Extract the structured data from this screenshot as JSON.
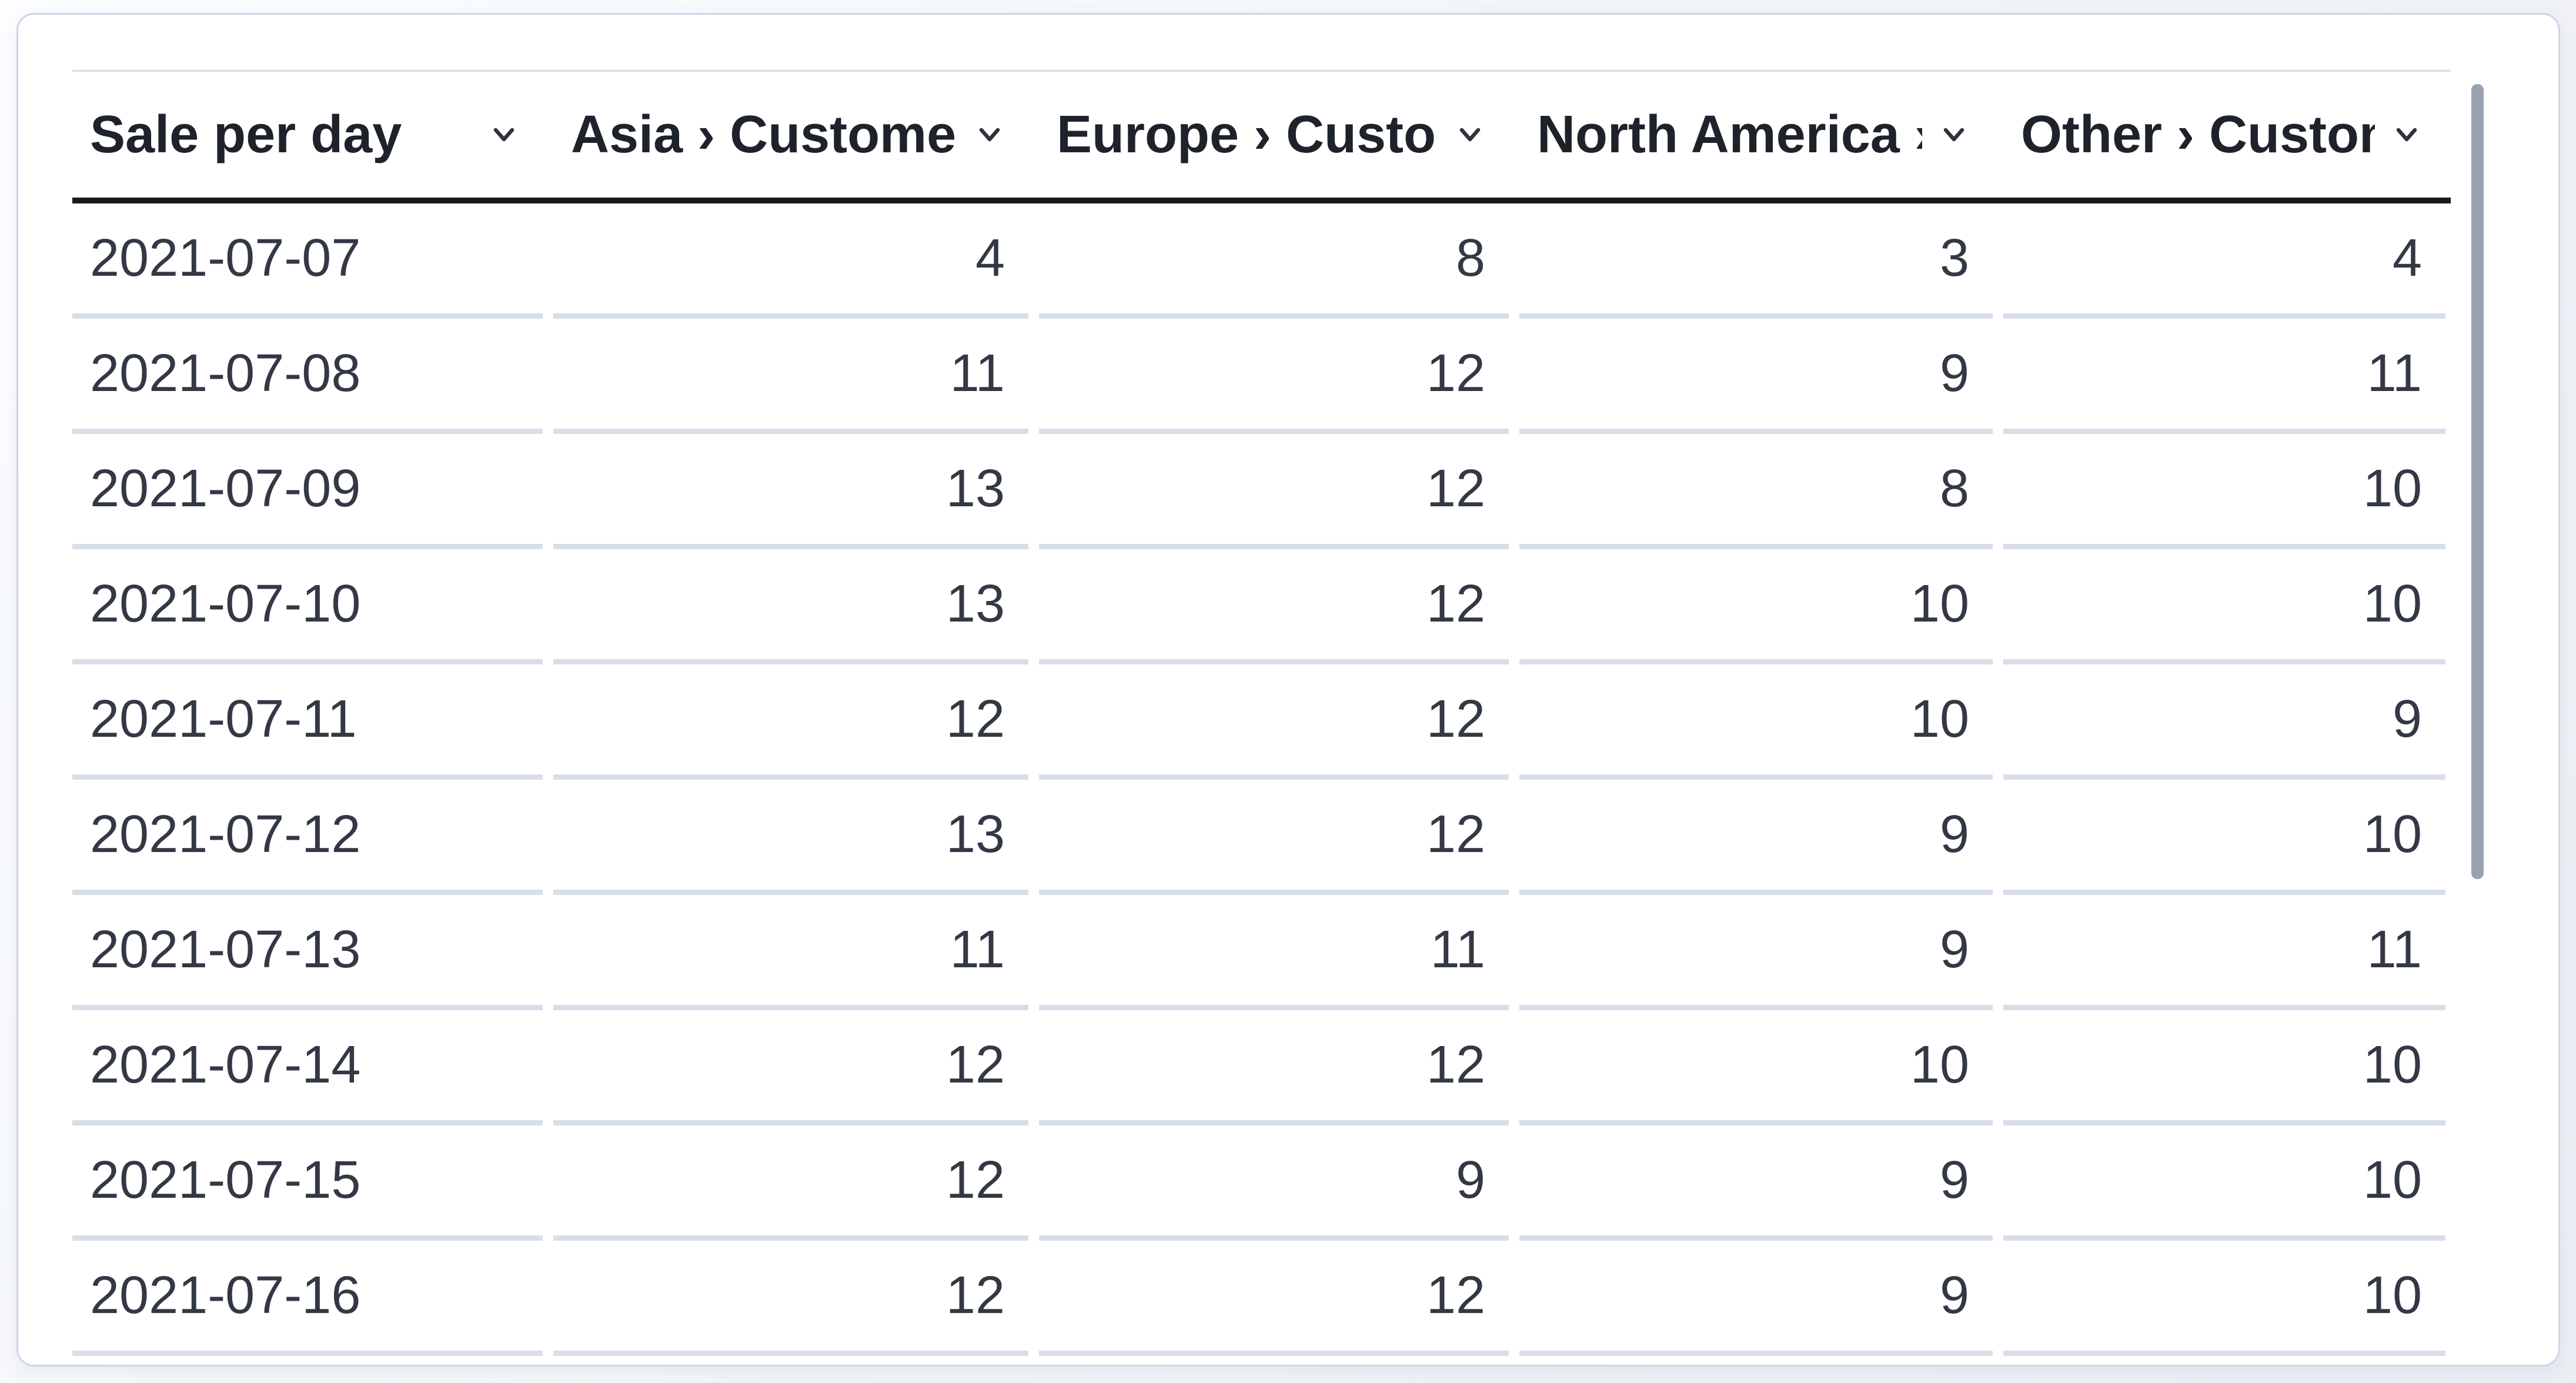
{
  "table": {
    "title": "Sale per day",
    "columns": [
      {
        "id": "date",
        "label": "Sale per day",
        "align": "left"
      },
      {
        "id": "asia",
        "label": "Asia › Customers",
        "align": "right"
      },
      {
        "id": "europe",
        "label": "Europe › Customers",
        "align": "right"
      },
      {
        "id": "north",
        "label": "North America › Customers",
        "align": "right"
      },
      {
        "id": "other",
        "label": "Other › Customers",
        "align": "right"
      }
    ],
    "rows": [
      {
        "date": "2021-07-07",
        "asia": "4",
        "europe": "8",
        "north": "3",
        "other": "4"
      },
      {
        "date": "2021-07-08",
        "asia": "11",
        "europe": "12",
        "north": "9",
        "other": "11"
      },
      {
        "date": "2021-07-09",
        "asia": "13",
        "europe": "12",
        "north": "8",
        "other": "10"
      },
      {
        "date": "2021-07-10",
        "asia": "13",
        "europe": "12",
        "north": "10",
        "other": "10"
      },
      {
        "date": "2021-07-11",
        "asia": "12",
        "europe": "12",
        "north": "10",
        "other": "9"
      },
      {
        "date": "2021-07-12",
        "asia": "13",
        "europe": "12",
        "north": "9",
        "other": "10"
      },
      {
        "date": "2021-07-13",
        "asia": "11",
        "europe": "11",
        "north": "9",
        "other": "11"
      },
      {
        "date": "2021-07-14",
        "asia": "12",
        "europe": "12",
        "north": "10",
        "other": "10"
      },
      {
        "date": "2021-07-15",
        "asia": "12",
        "europe": "9",
        "north": "9",
        "other": "10"
      },
      {
        "date": "2021-07-16",
        "asia": "12",
        "europe": "12",
        "north": "9",
        "other": "10"
      }
    ]
  },
  "icons": {
    "header_sort": "chevron-down-icon"
  },
  "colors": {
    "card_background": "#ffffff",
    "card_border": "#ccd6e6",
    "header_underline": "#17191e",
    "header_top_border": "#d7dde9",
    "row_divider": "#d8dee9",
    "header_text": "#1e222b",
    "body_text": "#333845",
    "scrollbar_thumb": "#9aa2b0",
    "page_background": "#f1f3f8"
  }
}
